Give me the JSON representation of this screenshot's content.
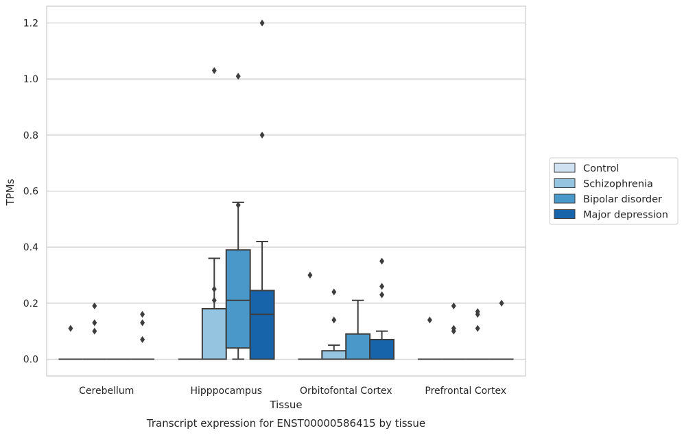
{
  "chart_data": {
    "type": "box",
    "xlabel": "Tissue",
    "ylabel": "TPMs",
    "caption": "Transcript expression for ENST00000586415 by tissue",
    "ylim": [
      -0.06,
      1.26
    ],
    "yticks": [
      0.0,
      0.2,
      0.4,
      0.6,
      0.8,
      1.0,
      1.2
    ],
    "ytick_labels": [
      "0.0",
      "0.2",
      "0.4",
      "0.6",
      "0.8",
      "1.0",
      "1.2"
    ],
    "grid": "horizontal",
    "legend_position": "right",
    "categories": [
      "Cerebellum",
      "Hipppocampus",
      "Orbitofontal Cortex",
      "Prefrontal Cortex"
    ],
    "series": [
      {
        "name": "Control",
        "color": "#d0e1f2",
        "boxes": [
          {
            "q1": 0,
            "median": 0,
            "q3": 0,
            "whisker_low": 0,
            "whisker_high": 0,
            "outliers": [
              0.11
            ]
          },
          {
            "q1": 0,
            "median": 0,
            "q3": 0,
            "whisker_low": 0,
            "whisker_high": 0,
            "outliers": []
          },
          {
            "q1": 0,
            "median": 0,
            "q3": 0,
            "whisker_low": 0,
            "whisker_high": 0,
            "outliers": [
              0.3
            ]
          },
          {
            "q1": 0,
            "median": 0,
            "q3": 0,
            "whisker_low": 0,
            "whisker_high": 0,
            "outliers": [
              0.14
            ]
          }
        ]
      },
      {
        "name": "Schizophrenia",
        "color": "#94c4df",
        "boxes": [
          {
            "q1": 0,
            "median": 0,
            "q3": 0,
            "whisker_low": 0,
            "whisker_high": 0,
            "outliers": [
              0.19,
              0.13,
              0.1
            ]
          },
          {
            "q1": 0,
            "median": 0,
            "q3": 0.18,
            "whisker_low": 0,
            "whisker_high": 0.36,
            "outliers": [
              1.03,
              0.25,
              0.21
            ]
          },
          {
            "q1": 0,
            "median": 0,
            "q3": 0.03,
            "whisker_low": 0,
            "whisker_high": 0.05,
            "outliers": [
              0.24,
              0.14
            ]
          },
          {
            "q1": 0,
            "median": 0,
            "q3": 0,
            "whisker_low": 0,
            "whisker_high": 0,
            "outliers": [
              0.19,
              0.11,
              0.1
            ]
          }
        ]
      },
      {
        "name": "Bipolar disorder",
        "color": "#4a98c9",
        "boxes": [
          {
            "q1": 0,
            "median": 0,
            "q3": 0,
            "whisker_low": 0,
            "whisker_high": 0,
            "outliers": []
          },
          {
            "q1": 0.04,
            "median": 0.21,
            "q3": 0.39,
            "whisker_low": 0,
            "whisker_high": 0.56,
            "outliers": [
              1.01,
              0.55
            ]
          },
          {
            "q1": 0,
            "median": 0,
            "q3": 0.09,
            "whisker_low": 0,
            "whisker_high": 0.21,
            "outliers": []
          },
          {
            "q1": 0,
            "median": 0,
            "q3": 0,
            "whisker_low": 0,
            "whisker_high": 0,
            "outliers": [
              0.17,
              0.16,
              0.11
            ]
          }
        ]
      },
      {
        "name": "Major depression",
        "color": "#1764ab",
        "boxes": [
          {
            "q1": 0,
            "median": 0,
            "q3": 0,
            "whisker_low": 0,
            "whisker_high": 0,
            "outliers": [
              0.16,
              0.13,
              0.07
            ]
          },
          {
            "q1": 0,
            "median": 0.16,
            "q3": 0.245,
            "whisker_low": 0,
            "whisker_high": 0.42,
            "outliers": [
              1.2,
              0.8
            ]
          },
          {
            "q1": 0,
            "median": 0,
            "q3": 0.07,
            "whisker_low": 0,
            "whisker_high": 0.1,
            "outliers": [
              0.35,
              0.26,
              0.23
            ]
          },
          {
            "q1": 0,
            "median": 0,
            "q3": 0,
            "whisker_low": 0,
            "whisker_high": 0,
            "outliers": [
              0.2
            ]
          }
        ]
      }
    ]
  }
}
